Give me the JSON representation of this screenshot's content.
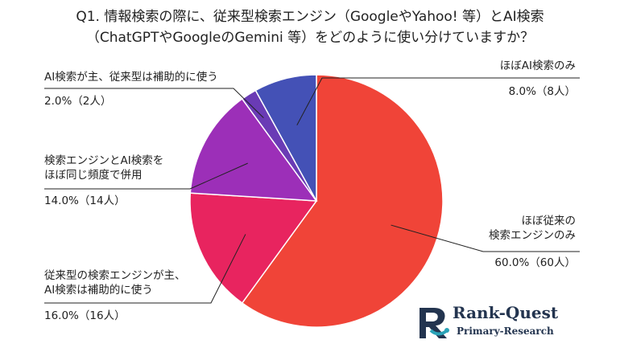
{
  "title_lines": [
    "Q1. 情報検索の際に、従来型検索エンジン（GoogleやYahoo! 等）とAI検索",
    "（ChatGPTやGoogleのGemini 等）をどのように使い分けていますか？"
  ],
  "chart_data": {
    "type": "pie",
    "slices": [
      {
        "label": [
          "ほぼ従来の",
          "検索エンジンのみ"
        ],
        "value": 60.0,
        "count_text": "60.0%（60人）",
        "color": "#f04438"
      },
      {
        "label": [
          "従来型の検索エンジンが主、",
          "AI検索は補助的に使う"
        ],
        "value": 16.0,
        "count_text": "16.0%（16人）",
        "color": "#e8245f"
      },
      {
        "label": [
          "検索エンジンとAI検索を",
          "ほぼ同じ頻度で併用"
        ],
        "value": 14.0,
        "count_text": "14.0%（14人）",
        "color": "#9c2fb8"
      },
      {
        "label": [
          "AI検索が主、従来型は補助的に使う"
        ],
        "value": 2.0,
        "count_text": "2.0%（2人）",
        "color": "#6a3bb5"
      },
      {
        "label": [
          "ほぼAI検索のみ"
        ],
        "value": 8.0,
        "count_text": "8.0%（8人）",
        "color": "#4451b6"
      }
    ]
  },
  "logo": {
    "name": "Rank-Quest",
    "sub": "Primary-Research",
    "color": "#23344f",
    "accent": "#2aa3b8"
  }
}
